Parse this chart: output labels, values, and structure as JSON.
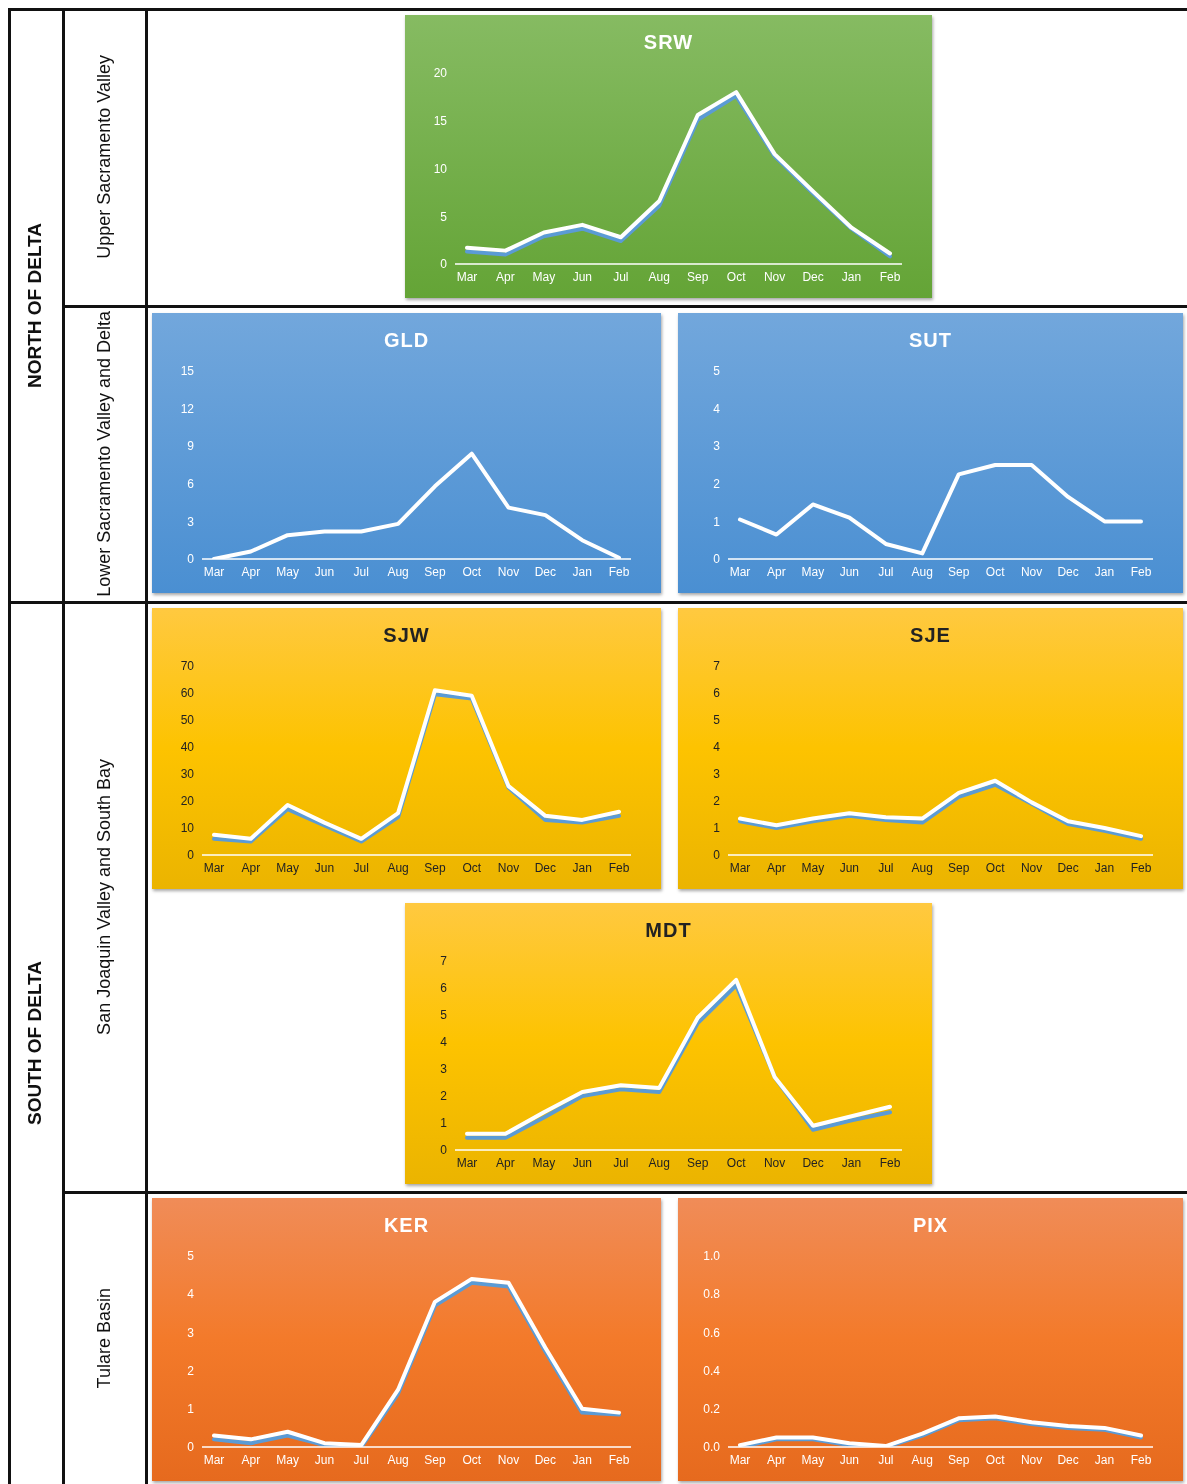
{
  "chart_data": [
    {
      "type": "other",
      "annotations": [
        "NORTH OF DELTA",
        "SOUTH OF DELTA",
        "Upper Sacramento Valley",
        "Lower Sacramento Valley and Delta",
        "San Joaquin Valley and South Bay",
        "Tulare Basin"
      ]
    },
    {
      "type": "line",
      "title": "SRW",
      "categories": [
        "Mar",
        "Apr",
        "May",
        "Jun",
        "Jul",
        "Aug",
        "Sep",
        "Oct",
        "Nov",
        "Dec",
        "Jan",
        "Feb"
      ],
      "ylim": [
        0,
        20
      ],
      "yticks": [
        0,
        5,
        10,
        15,
        20
      ],
      "grid": false,
      "marker": "none",
      "line_style": "solid",
      "series": [
        {
          "color": "#5b9bd5",
          "values": [
            1.3,
            1.0,
            2.9,
            3.7,
            2.4,
            6.1,
            15.1,
            17.6,
            11.3,
            7.4,
            3.7,
            0.8
          ]
        },
        {
          "color": "#ffffff",
          "values": [
            1.7,
            1.4,
            3.3,
            4.1,
            2.8,
            6.6,
            15.6,
            18,
            11.5,
            7.6,
            3.8,
            1.1
          ]
        }
      ]
    },
    {
      "type": "line",
      "title": "GLD",
      "categories": [
        "Mar",
        "Apr",
        "May",
        "Jun",
        "Jul",
        "Aug",
        "Sep",
        "Oct",
        "Nov",
        "Dec",
        "Jan",
        "Feb"
      ],
      "ylim": [
        0,
        15
      ],
      "yticks": [
        0,
        3,
        6,
        9,
        12,
        15
      ],
      "grid": false,
      "marker": "none",
      "line_style": "solid",
      "series": [
        {
          "color": "#ffffff",
          "values": [
            0,
            0.6,
            1.9,
            2.2,
            2.2,
            2.8,
            5.8,
            8.4,
            4.1,
            3.5,
            1.5,
            0.1
          ]
        }
      ]
    },
    {
      "type": "line",
      "title": "SUT",
      "categories": [
        "Mar",
        "Apr",
        "May",
        "Jun",
        "Jul",
        "Aug",
        "Sep",
        "Oct",
        "Nov",
        "Dec",
        "Jan",
        "Feb"
      ],
      "ylim": [
        0,
        5
      ],
      "yticks": [
        0,
        1,
        2,
        3,
        4,
        5
      ],
      "grid": false,
      "marker": "none",
      "line_style": "solid",
      "series": [
        {
          "color": "#ffffff",
          "values": [
            1.05,
            0.65,
            1.45,
            1.1,
            0.4,
            0.15,
            2.25,
            2.5,
            2.5,
            1.65,
            1.0,
            1.0
          ]
        }
      ]
    },
    {
      "type": "line",
      "title": "SJW",
      "categories": [
        "Mar",
        "Apr",
        "May",
        "Jun",
        "Jul",
        "Aug",
        "Sep",
        "Oct",
        "Nov",
        "Dec",
        "Jan",
        "Feb"
      ],
      "ylim": [
        0,
        70
      ],
      "yticks": [
        0,
        10,
        20,
        30,
        40,
        50,
        60,
        70
      ],
      "grid": false,
      "marker": "none",
      "line_style": "solid",
      "series": [
        {
          "color": "#5b9bd5",
          "values": [
            6,
            5,
            17,
            11,
            5,
            14,
            59.5,
            58,
            25,
            13,
            12,
            14.5
          ]
        },
        {
          "color": "#ffffff",
          "values": [
            7.5,
            6,
            18.5,
            12,
            6,
            15.5,
            61,
            59,
            25.5,
            14.5,
            13,
            16
          ]
        }
      ]
    },
    {
      "type": "line",
      "title": "SJE",
      "categories": [
        "Mar",
        "Apr",
        "May",
        "Jun",
        "Jul",
        "Aug",
        "Sep",
        "Oct",
        "Nov",
        "Dec",
        "Jan",
        "Feb"
      ],
      "ylim": [
        0,
        7
      ],
      "yticks": [
        0,
        1,
        2,
        3,
        4,
        5,
        6,
        7
      ],
      "grid": false,
      "marker": "none",
      "line_style": "solid",
      "series": [
        {
          "color": "#5b9bd5",
          "values": [
            1.25,
            1.0,
            1.25,
            1.45,
            1.3,
            1.2,
            2.15,
            2.6,
            1.9,
            1.15,
            0.9,
            0.6
          ]
        },
        {
          "color": "#ffffff",
          "values": [
            1.35,
            1.1,
            1.35,
            1.55,
            1.4,
            1.35,
            2.3,
            2.75,
            1.95,
            1.25,
            1.0,
            0.7
          ]
        }
      ]
    },
    {
      "type": "line",
      "title": "MDT",
      "categories": [
        "Mar",
        "Apr",
        "May",
        "Jun",
        "Jul",
        "Aug",
        "Sep",
        "Oct",
        "Nov",
        "Dec",
        "Jan",
        "Feb"
      ],
      "ylim": [
        0,
        7
      ],
      "yticks": [
        0,
        1,
        2,
        3,
        4,
        5,
        6,
        7
      ],
      "grid": false,
      "marker": "none",
      "line_style": "solid",
      "series": [
        {
          "color": "#5b9bd5",
          "values": [
            0.45,
            0.45,
            1.2,
            2.0,
            2.25,
            2.15,
            4.7,
            6.1,
            2.7,
            0.75,
            1.1,
            1.4
          ]
        },
        {
          "color": "#ffffff",
          "values": [
            0.6,
            0.6,
            1.4,
            2.15,
            2.4,
            2.3,
            4.9,
            6.3,
            2.7,
            0.9,
            1.25,
            1.6
          ]
        }
      ]
    },
    {
      "type": "line",
      "title": "KER",
      "categories": [
        "Mar",
        "Apr",
        "May",
        "Jun",
        "Jul",
        "Aug",
        "Sep",
        "Oct",
        "Nov",
        "Dec",
        "Jan",
        "Feb"
      ],
      "ylim": [
        0,
        5
      ],
      "yticks": [
        0,
        1,
        2,
        3,
        4,
        5
      ],
      "grid": false,
      "marker": "none",
      "line_style": "solid",
      "series": [
        {
          "color": "#5b9bd5",
          "values": [
            0.2,
            0.1,
            0.3,
            0.05,
            0,
            1.4,
            3.7,
            4.3,
            4.2,
            2.5,
            0.9,
            0.85
          ]
        },
        {
          "color": "#ffffff",
          "values": [
            0.3,
            0.2,
            0.4,
            0.1,
            0.05,
            1.5,
            3.8,
            4.4,
            4.3,
            2.6,
            1.0,
            0.9
          ]
        }
      ]
    },
    {
      "type": "line",
      "title": "PIX",
      "categories": [
        "Mar",
        "Apr",
        "May",
        "Jun",
        "Jul",
        "Aug",
        "Sep",
        "Oct",
        "Nov",
        "Dec",
        "Jan",
        "Feb"
      ],
      "ylim": [
        0,
        1
      ],
      "yticks": [
        {
          "value": 0,
          "label": "0.0"
        },
        {
          "value": 0.2,
          "label": "0.2"
        },
        {
          "value": 0.4,
          "label": "0.4"
        },
        {
          "value": 0.6,
          "label": "0.6"
        },
        {
          "value": 0.8,
          "label": "0.8"
        },
        {
          "value": 1,
          "label": "1.0"
        }
      ],
      "grid": false,
      "marker": "none",
      "line_style": "solid",
      "series": [
        {
          "color": "#5b9bd5",
          "values": [
            0.0,
            0.04,
            0.04,
            0.01,
            0,
            0.06,
            0.14,
            0.15,
            0.12,
            0.1,
            0.09,
            0.05
          ]
        },
        {
          "color": "#ffffff",
          "values": [
            0.01,
            0.05,
            0.05,
            0.02,
            0.005,
            0.07,
            0.15,
            0.16,
            0.13,
            0.11,
            0.1,
            0.06
          ]
        }
      ]
    }
  ]
}
